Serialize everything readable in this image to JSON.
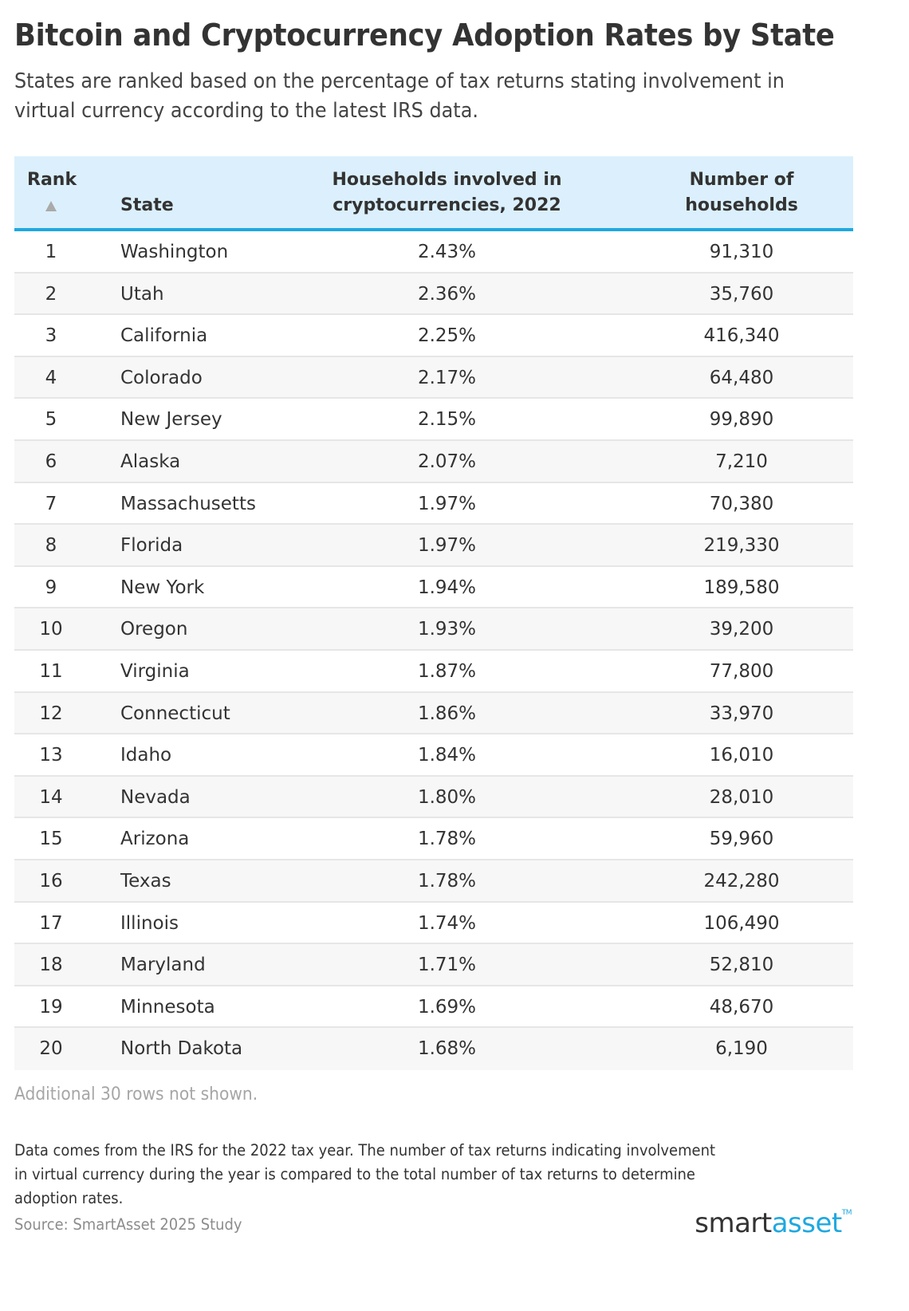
{
  "header": {
    "title": "Bitcoin and Cryptocurrency Adoption Rates by State",
    "subtitle": "States are ranked based on the percentage of tax returns stating involvement in virtual currency according to the latest IRS data."
  },
  "table": {
    "columns": {
      "rank": "Rank",
      "state": "State",
      "pct": "Households involved in cryptocurrencies, 2022",
      "pct_line1": "Households involved in",
      "pct_line2": "cryptocurrencies, 2022",
      "num": "Number of households",
      "num_line1": "Number of",
      "num_line2": "households"
    },
    "sort": {
      "column": "rank",
      "direction": "ascending",
      "icon": "triangle-up-icon"
    },
    "rows": [
      {
        "rank": "1",
        "state": "Washington",
        "pct": "2.43%",
        "num": "91,310"
      },
      {
        "rank": "2",
        "state": "Utah",
        "pct": "2.36%",
        "num": "35,760"
      },
      {
        "rank": "3",
        "state": "California",
        "pct": "2.25%",
        "num": "416,340"
      },
      {
        "rank": "4",
        "state": "Colorado",
        "pct": "2.17%",
        "num": "64,480"
      },
      {
        "rank": "5",
        "state": "New Jersey",
        "pct": "2.15%",
        "num": "99,890"
      },
      {
        "rank": "6",
        "state": "Alaska",
        "pct": "2.07%",
        "num": "7,210"
      },
      {
        "rank": "7",
        "state": "Massachusetts",
        "pct": "1.97%",
        "num": "70,380"
      },
      {
        "rank": "8",
        "state": "Florida",
        "pct": "1.97%",
        "num": "219,330"
      },
      {
        "rank": "9",
        "state": "New York",
        "pct": "1.94%",
        "num": "189,580"
      },
      {
        "rank": "10",
        "state": "Oregon",
        "pct": "1.93%",
        "num": "39,200"
      },
      {
        "rank": "11",
        "state": "Virginia",
        "pct": "1.87%",
        "num": "77,800"
      },
      {
        "rank": "12",
        "state": "Connecticut",
        "pct": "1.86%",
        "num": "33,970"
      },
      {
        "rank": "13",
        "state": "Idaho",
        "pct": "1.84%",
        "num": "16,010"
      },
      {
        "rank": "14",
        "state": "Nevada",
        "pct": "1.80%",
        "num": "28,010"
      },
      {
        "rank": "15",
        "state": "Arizona",
        "pct": "1.78%",
        "num": "59,960"
      },
      {
        "rank": "16",
        "state": "Texas",
        "pct": "1.78%",
        "num": "242,280"
      },
      {
        "rank": "17",
        "state": "Illinois",
        "pct": "1.74%",
        "num": "106,490"
      },
      {
        "rank": "18",
        "state": "Maryland",
        "pct": "1.71%",
        "num": "52,810"
      },
      {
        "rank": "19",
        "state": "Minnesota",
        "pct": "1.69%",
        "num": "48,670"
      },
      {
        "rank": "20",
        "state": "North Dakota",
        "pct": "1.68%",
        "num": "6,190"
      }
    ],
    "more_rows_note": "Additional 30 rows not shown."
  },
  "footer": {
    "methodology": "Data comes from the IRS for the 2022 tax year. The number of tax returns indicating involvement in virtual currency during the year is compared to the total number of tax returns to determine adoption rates.",
    "source": "Source: SmartAsset 2025 Study",
    "logo": {
      "part1": "smart",
      "part2": "asset",
      "tm": "TM"
    }
  },
  "colors": {
    "header_bg": "#dbf0fc",
    "accent": "#1fa8e0",
    "row_stripe": "#f7f7f7",
    "text": "#333333",
    "muted": "#a6a6a6"
  }
}
